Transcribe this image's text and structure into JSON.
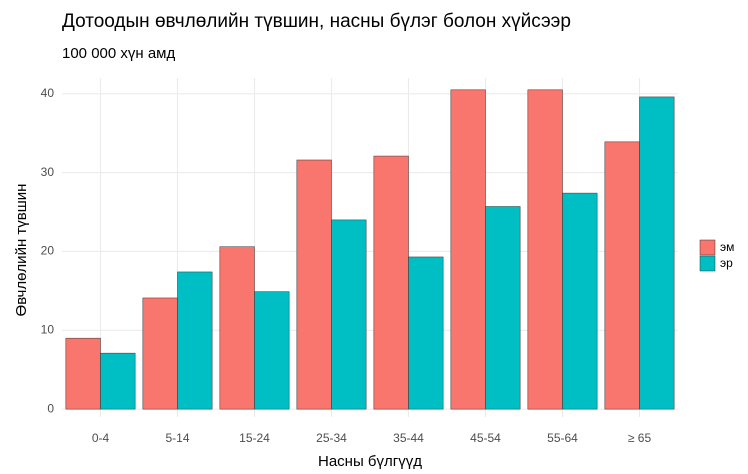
{
  "chart_data": {
    "type": "bar",
    "title": "Дотоодын өвчлөлийн түвшин, насны бүлэг болон хүйсээр",
    "subtitle": "100 000 хүн амд",
    "x_label": "Насны бүлгүүд",
    "y_label": "Өвчлөлийн түвшин",
    "categories": [
      "0-4",
      "5-14",
      "15-24",
      "25-34",
      "35-44",
      "45-54",
      "55-64",
      "≥ 65"
    ],
    "series": [
      {
        "name": "эм",
        "color": "#F8766D",
        "values": [
          9.0,
          14.1,
          20.6,
          31.6,
          32.1,
          40.5,
          40.5,
          33.9
        ]
      },
      {
        "name": "эр",
        "color": "#00BFC4",
        "values": [
          7.1,
          17.4,
          14.9,
          24.0,
          19.3,
          25.7,
          27.4,
          39.6
        ]
      }
    ],
    "ylim": [
      -1,
      42
    ],
    "yticks": [
      0,
      10,
      20,
      30,
      40
    ],
    "grid": true,
    "legend": "right"
  }
}
